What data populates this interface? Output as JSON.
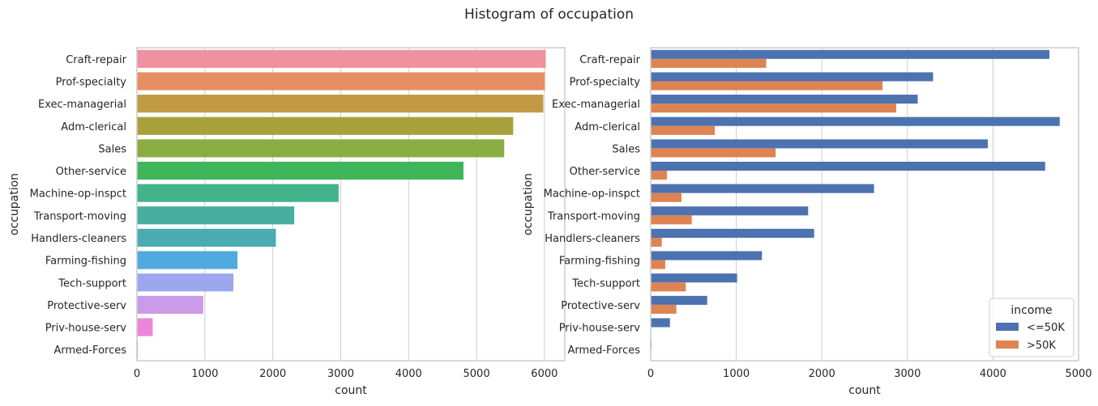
{
  "title": "Histogram of occupation",
  "chart_data": [
    {
      "type": "bar",
      "orientation": "horizontal",
      "categories": [
        "Craft-repair",
        "Prof-specialty",
        "Exec-managerial",
        "Adm-clerical",
        "Sales",
        "Other-service",
        "Machine-op-inspct",
        "Transport-moving",
        "Handlers-cleaners",
        "Farming-fishing",
        "Tech-support",
        "Protective-serv",
        "Priv-house-serv",
        "Armed-Forces"
      ],
      "values": [
        6020,
        6008,
        5984,
        5540,
        5408,
        4808,
        2970,
        2316,
        2046,
        1480,
        1420,
        976,
        232,
        14
      ],
      "colors": [
        "#ef919e",
        "#e68f64",
        "#c29a46",
        "#a8a03c",
        "#89ad40",
        "#3fb55a",
        "#43b38c",
        "#48ae9e",
        "#4aabb0",
        "#4faadd",
        "#9ca8ed",
        "#cb9ae8",
        "#ec86da",
        "#ee8dbf"
      ],
      "xlabel": "count",
      "ylabel": "occupation",
      "xlim": [
        0,
        6300
      ],
      "xticks": [
        0,
        1000,
        2000,
        3000,
        4000,
        5000,
        6000
      ],
      "grid": "vertical"
    },
    {
      "type": "bar",
      "orientation": "horizontal",
      "categories": [
        "Craft-repair",
        "Prof-specialty",
        "Exec-managerial",
        "Adm-clerical",
        "Sales",
        "Other-service",
        "Machine-op-inspct",
        "Transport-moving",
        "Handlers-cleaners",
        "Farming-fishing",
        "Tech-support",
        "Protective-serv",
        "Priv-house-serv",
        "Armed-Forces"
      ],
      "series": [
        {
          "name": "<=50K",
          "color": "#4c72b0",
          "values": [
            4660,
            3300,
            3120,
            4780,
            3940,
            4610,
            2610,
            1840,
            1910,
            1300,
            1010,
            660,
            225,
            10
          ]
        },
        {
          "name": ">50K",
          "color": "#dd8452",
          "values": [
            1350,
            2710,
            2870,
            750,
            1460,
            190,
            360,
            480,
            130,
            170,
            410,
            300,
            2,
            1
          ]
        }
      ],
      "xlabel": "count",
      "ylabel": "occupation",
      "xlim": [
        0,
        5000
      ],
      "xticks": [
        0,
        1000,
        2000,
        3000,
        4000,
        5000
      ],
      "grid": "vertical",
      "legend": {
        "title": "income",
        "position": "bottom-right"
      }
    }
  ]
}
